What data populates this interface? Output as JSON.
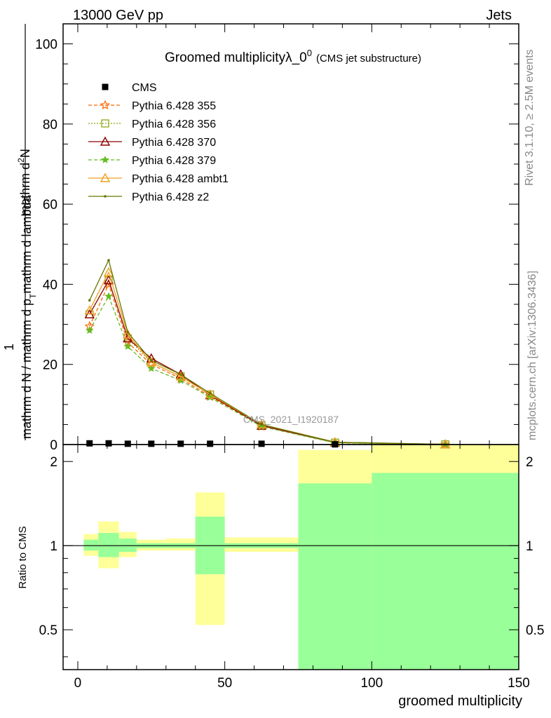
{
  "header": {
    "left": "13000 GeV pp",
    "right": "Jets"
  },
  "side_labels": {
    "rivet": "Rivet 3.1.10, ≥ 2.5M events",
    "mcplots": "mcplots.cern.ch [arXiv:1306.3436]"
  },
  "watermark": "CMS_2021_I1920187",
  "main_title": {
    "text": "Groomed multiplicityλ_0",
    "superscript": "0",
    "suffix": "(CMS jet substructure)"
  },
  "ylabel_main": {
    "numerator_1": "1",
    "numerator_2": "mathrm d",
    "numerator_3": "2",
    "numerator_4": "N",
    "denominator_1": "mathrm d N / mathrm d p",
    "denominator_sub": "T",
    "denominator_2": "mathrm d p",
    "denominator_sub2": "T",
    "denominator_3": "mathrm d lambda"
  },
  "ylabel_ratio": "Ratio to CMS",
  "xlabel": "groomed multiplicity",
  "chart_data": {
    "type": "line",
    "title": "Groomed multiplicityλ_0^0 (CMS jet substructure)",
    "xlabel": "groomed multiplicity",
    "xlim": [
      -5,
      150
    ],
    "main_ylim": [
      0,
      105
    ],
    "main_yticks": [
      "0",
      "20",
      "40",
      "60",
      "80",
      "100"
    ],
    "ratio_ylim": [
      0.36,
      2.3
    ],
    "ratio_yticks": [
      "0.5",
      "1",
      "2"
    ],
    "ratio_scale": "log",
    "xticks": [
      "0",
      "50",
      "100",
      "150"
    ],
    "legend_placement": "upper-left",
    "bins": [
      [
        2,
        7
      ],
      [
        7,
        14
      ],
      [
        14,
        20
      ],
      [
        20,
        30
      ],
      [
        30,
        40
      ],
      [
        40,
        50
      ],
      [
        50,
        75
      ],
      [
        75,
        100
      ],
      [
        100,
        150
      ]
    ],
    "x": [
      4,
      10.5,
      17,
      25,
      35,
      45,
      62.5,
      87.5,
      125
    ],
    "data": {
      "name": "CMS",
      "values": [
        0.3,
        0.3,
        0.2,
        0.2,
        0.2,
        0.2,
        0.2,
        0.05,
        0.0
      ]
    },
    "series": [
      {
        "name": "Pythia 6.428 355",
        "color": "#ff6600",
        "dash": "5,3",
        "marker": "star",
        "values": [
          29.5,
          40.0,
          25.5,
          20.0,
          16.5,
          12.0,
          4.5,
          0.5,
          0.05
        ]
      },
      {
        "name": "Pythia 6.428 356",
        "color": "#8ea615",
        "dash": "2,2",
        "marker": "square",
        "values": [
          32.5,
          41.0,
          26.5,
          20.5,
          17.0,
          12.5,
          4.8,
          0.5,
          0.05
        ]
      },
      {
        "name": "Pythia 6.428 370",
        "color": "#8b0000",
        "dash": "",
        "marker": "triangle",
        "values": [
          32.5,
          41.0,
          26.5,
          21.5,
          17.5,
          12.3,
          4.7,
          0.5,
          0.05
        ]
      },
      {
        "name": "Pythia 6.428 379",
        "color": "#66bb22",
        "dash": "5,3",
        "marker": "smallstar",
        "values": [
          28.5,
          37.0,
          24.5,
          19.0,
          16.0,
          11.8,
          4.5,
          0.4,
          0.04
        ]
      },
      {
        "name": "Pythia 6.428 ambt1",
        "color": "#f0a020",
        "dash": "",
        "marker": "triangle",
        "values": [
          33.5,
          43.0,
          27.5,
          20.5,
          17.0,
          12.5,
          5.0,
          0.6,
          0.06
        ]
      },
      {
        "name": "Pythia 6.428 z2",
        "color": "#667700",
        "dash": "",
        "marker": "dot",
        "values": [
          36.0,
          46.0,
          28.0,
          21.0,
          17.5,
          12.8,
          5.0,
          0.6,
          0.06
        ]
      }
    ],
    "ratio_bands": {
      "inner_color": "#99ff99",
      "outer_color": "#ffff99",
      "inner": [
        [
          0.96,
          1.05
        ],
        [
          0.91,
          1.11
        ],
        [
          0.95,
          1.06
        ],
        [
          0.98,
          1.02
        ],
        [
          0.98,
          1.02
        ],
        [
          0.79,
          1.27
        ],
        [
          0.98,
          1.02
        ],
        [
          0.36,
          1.67
        ],
        [
          0.36,
          1.82
        ]
      ],
      "outer": [
        [
          0.92,
          1.1
        ],
        [
          0.83,
          1.22
        ],
        [
          0.91,
          1.12
        ],
        [
          0.96,
          1.05
        ],
        [
          0.96,
          1.06
        ],
        [
          0.52,
          1.55
        ],
        [
          0.95,
          1.07
        ],
        [
          0.36,
          2.2
        ],
        [
          0.36,
          2.3
        ]
      ]
    }
  }
}
